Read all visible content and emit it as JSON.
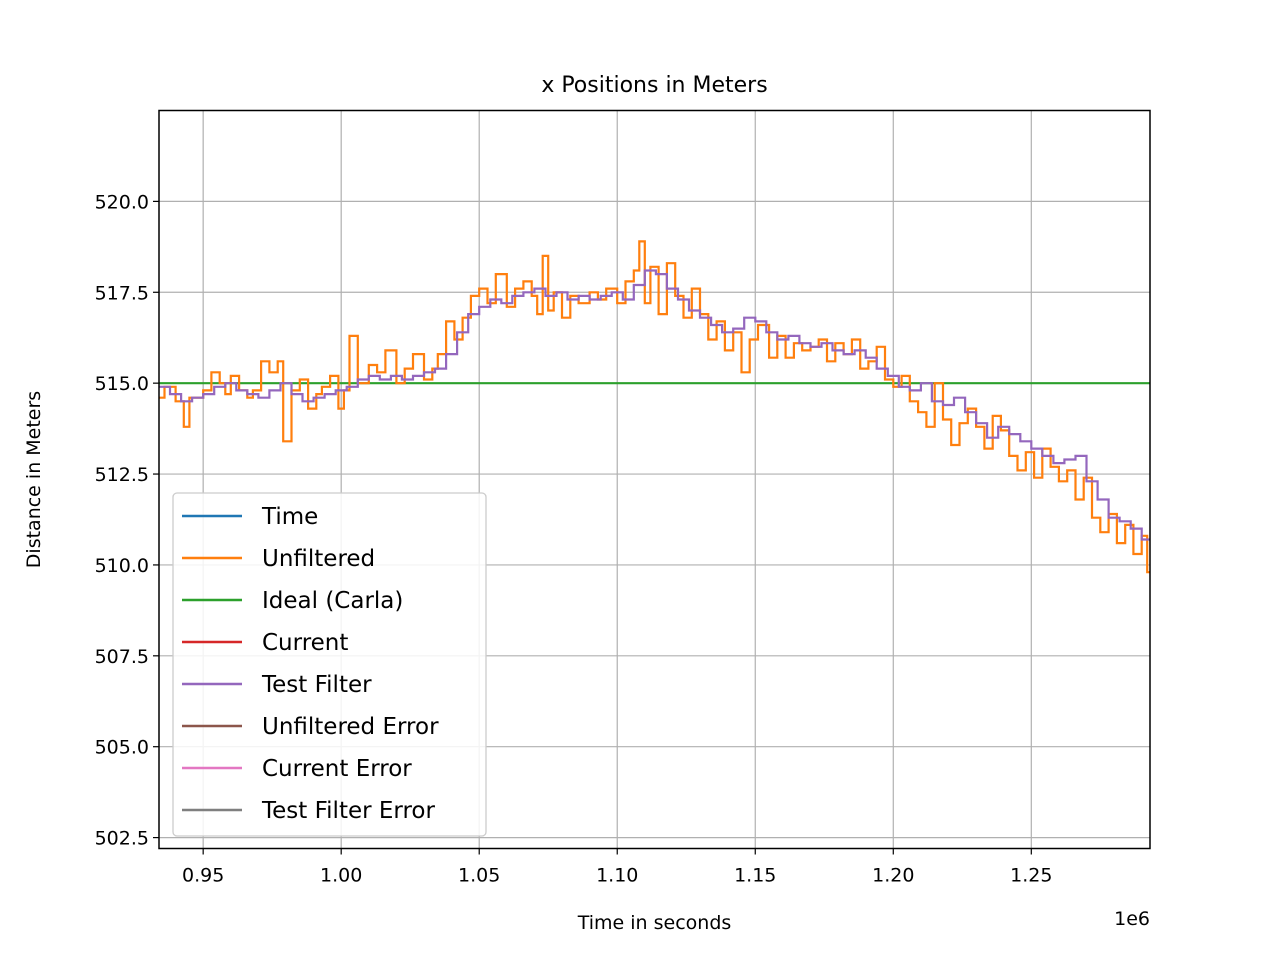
{
  "chart_data": {
    "type": "line",
    "title": "x Positions in Meters",
    "xlabel": "Time in seconds",
    "ylabel": "Distance in Meters",
    "x_offset_label": "1e6",
    "xlim": [
      0.934,
      1.293
    ],
    "ylim": [
      502.2,
      522.5
    ],
    "x_ticks": [
      0.95,
      1.0,
      1.05,
      1.1,
      1.15,
      1.2,
      1.25
    ],
    "x_tick_labels": [
      "0.95",
      "1.00",
      "1.05",
      "1.10",
      "1.15",
      "1.20",
      "1.25"
    ],
    "y_ticks": [
      502.5,
      505.0,
      507.5,
      510.0,
      512.5,
      515.0,
      517.5,
      520.0
    ],
    "y_tick_labels": [
      "502.5",
      "505.0",
      "507.5",
      "510.0",
      "512.5",
      "515.0",
      "517.5",
      "520.0"
    ],
    "grid": true,
    "legend_position": "lower-left",
    "step": true,
    "series": [
      {
        "name": "Time",
        "color": "#1f77b4",
        "x": [],
        "y": []
      },
      {
        "name": "Unfiltered",
        "color": "#ff7f0e",
        "x": [
          0.934,
          0.936,
          0.94,
          0.943,
          0.945,
          0.95,
          0.953,
          0.956,
          0.958,
          0.96,
          0.963,
          0.966,
          0.968,
          0.971,
          0.974,
          0.977,
          0.979,
          0.982,
          0.985,
          0.988,
          0.991,
          0.993,
          0.996,
          0.999,
          1.001,
          1.003,
          1.006,
          1.01,
          1.013,
          1.016,
          1.02,
          1.023,
          1.026,
          1.03,
          1.033,
          1.035,
          1.038,
          1.041,
          1.044,
          1.047,
          1.05,
          1.053,
          1.056,
          1.06,
          1.063,
          1.066,
          1.069,
          1.071,
          1.073,
          1.075,
          1.077,
          1.08,
          1.083,
          1.086,
          1.09,
          1.093,
          1.096,
          1.1,
          1.103,
          1.106,
          1.108,
          1.11,
          1.112,
          1.115,
          1.118,
          1.121,
          1.124,
          1.127,
          1.13,
          1.133,
          1.136,
          1.139,
          1.142,
          1.145,
          1.148,
          1.151,
          1.155,
          1.158,
          1.161,
          1.164,
          1.167,
          1.17,
          1.173,
          1.176,
          1.179,
          1.182,
          1.185,
          1.188,
          1.191,
          1.194,
          1.197,
          1.2,
          1.203,
          1.206,
          1.209,
          1.212,
          1.215,
          1.218,
          1.221,
          1.224,
          1.227,
          1.23,
          1.233,
          1.236,
          1.239,
          1.242,
          1.245,
          1.248,
          1.251,
          1.254,
          1.257,
          1.26,
          1.263,
          1.266,
          1.269,
          1.272,
          1.275,
          1.278,
          1.281,
          1.284,
          1.287,
          1.29,
          1.292
        ],
        "y": [
          514.6,
          514.9,
          514.5,
          513.8,
          514.6,
          514.8,
          515.3,
          515.0,
          514.7,
          515.2,
          514.8,
          514.6,
          514.8,
          515.6,
          515.3,
          515.6,
          513.4,
          514.8,
          515.1,
          514.3,
          514.7,
          514.9,
          515.2,
          514.3,
          514.8,
          516.3,
          515.0,
          515.5,
          515.3,
          515.9,
          515.0,
          515.4,
          515.8,
          515.1,
          515.4,
          515.8,
          516.7,
          516.2,
          516.8,
          517.4,
          517.6,
          517.2,
          518.0,
          517.1,
          517.6,
          517.8,
          517.4,
          516.9,
          518.5,
          517.0,
          517.5,
          516.8,
          517.4,
          517.2,
          517.5,
          517.3,
          517.6,
          517.2,
          517.8,
          518.1,
          518.9,
          517.2,
          518.2,
          516.9,
          518.3,
          517.4,
          516.8,
          517.6,
          516.9,
          516.2,
          516.7,
          515.9,
          516.4,
          515.3,
          516.2,
          516.6,
          515.7,
          516.3,
          515.7,
          516.1,
          515.9,
          516.0,
          516.2,
          515.6,
          516.1,
          515.8,
          516.2,
          515.4,
          515.6,
          516.0,
          515.1,
          514.9,
          515.2,
          514.5,
          514.2,
          513.8,
          515.0,
          514.0,
          513.3,
          513.9,
          514.3,
          513.8,
          513.2,
          514.1,
          513.7,
          513.0,
          512.6,
          513.1,
          512.4,
          513.2,
          512.7,
          512.3,
          512.6,
          511.8,
          512.4,
          511.3,
          510.9,
          511.4,
          510.6,
          511.1,
          510.3,
          510.8,
          509.8
        ]
      },
      {
        "name": "Ideal (Carla)",
        "color": "#2ca02c",
        "x": [
          0.934,
          1.293
        ],
        "y": [
          515.0,
          515.0
        ]
      },
      {
        "name": "Current",
        "color": "#d62728",
        "x": [],
        "y": []
      },
      {
        "name": "Test Filter",
        "color": "#9467bd",
        "x": [
          0.934,
          0.938,
          0.942,
          0.946,
          0.95,
          0.954,
          0.958,
          0.962,
          0.966,
          0.97,
          0.974,
          0.978,
          0.982,
          0.986,
          0.99,
          0.994,
          0.998,
          1.002,
          1.006,
          1.01,
          1.014,
          1.018,
          1.022,
          1.026,
          1.03,
          1.034,
          1.038,
          1.042,
          1.046,
          1.05,
          1.054,
          1.058,
          1.062,
          1.066,
          1.07,
          1.074,
          1.078,
          1.082,
          1.086,
          1.09,
          1.094,
          1.098,
          1.102,
          1.106,
          1.11,
          1.114,
          1.118,
          1.122,
          1.126,
          1.13,
          1.134,
          1.138,
          1.142,
          1.146,
          1.15,
          1.154,
          1.158,
          1.162,
          1.166,
          1.17,
          1.174,
          1.178,
          1.182,
          1.186,
          1.19,
          1.194,
          1.198,
          1.202,
          1.206,
          1.21,
          1.214,
          1.218,
          1.222,
          1.226,
          1.23,
          1.234,
          1.238,
          1.242,
          1.246,
          1.25,
          1.254,
          1.258,
          1.262,
          1.266,
          1.27,
          1.274,
          1.278,
          1.282,
          1.286,
          1.29
        ],
        "y": [
          514.9,
          514.7,
          514.5,
          514.6,
          514.7,
          514.9,
          515.0,
          514.8,
          514.7,
          514.6,
          514.8,
          515.0,
          514.7,
          514.5,
          514.6,
          514.7,
          514.8,
          514.9,
          515.1,
          515.2,
          515.1,
          515.2,
          515.1,
          515.2,
          515.3,
          515.4,
          515.8,
          516.4,
          516.9,
          517.1,
          517.3,
          517.2,
          517.4,
          517.5,
          517.6,
          517.4,
          517.5,
          517.3,
          517.4,
          517.3,
          517.4,
          517.5,
          517.3,
          517.7,
          518.1,
          518.0,
          517.6,
          517.3,
          517.0,
          516.8,
          516.6,
          516.4,
          516.5,
          516.8,
          516.7,
          516.4,
          516.2,
          516.3,
          516.1,
          516.0,
          516.1,
          515.9,
          515.8,
          515.9,
          515.7,
          515.4,
          515.2,
          514.9,
          514.8,
          515.0,
          514.5,
          514.4,
          514.6,
          514.2,
          513.9,
          513.5,
          513.8,
          513.6,
          513.4,
          513.2,
          513.0,
          512.8,
          512.9,
          513.0,
          512.3,
          511.8,
          511.3,
          511.2,
          511.0,
          510.7
        ]
      },
      {
        "name": "Unfiltered Error",
        "color": "#8c564b",
        "x": [],
        "y": []
      },
      {
        "name": "Current Error",
        "color": "#e377c2",
        "x": [],
        "y": []
      },
      {
        "name": "Test Filter Error",
        "color": "#7f7f7f",
        "x": [],
        "y": []
      }
    ]
  }
}
